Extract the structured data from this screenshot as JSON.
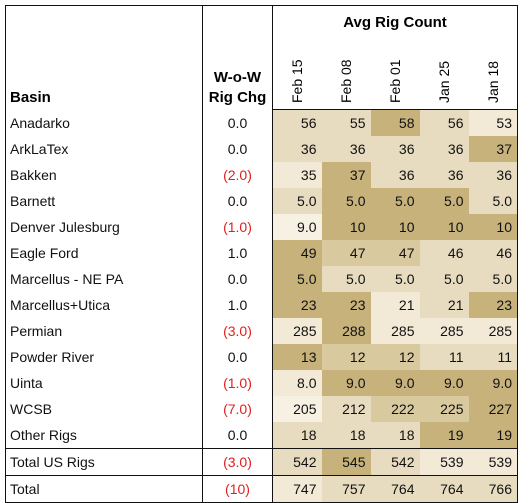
{
  "header": {
    "basin": "Basin",
    "wow_line1": "W-o-W",
    "wow_line2": "Rig Chg",
    "avg_rig_count": "Avg Rig Count",
    "dates": [
      "Feb 15",
      "Feb 08",
      "Feb 01",
      "Jan 25",
      "Jan 18"
    ]
  },
  "rows": [
    {
      "basin": "Anadarko",
      "wow": "0.0",
      "values": [
        "56",
        "55",
        "58",
        "56",
        "53"
      ]
    },
    {
      "basin": "ArkLaTex",
      "wow": "0.0",
      "values": [
        "36",
        "36",
        "36",
        "36",
        "37"
      ]
    },
    {
      "basin": "Bakken",
      "wow": "(2.0)",
      "values": [
        "35",
        "37",
        "36",
        "36",
        "36"
      ]
    },
    {
      "basin": "Barnett",
      "wow": "0.0",
      "values": [
        "5.0",
        "5.0",
        "5.0",
        "5.0",
        "5.0"
      ]
    },
    {
      "basin": "Denver Julesburg",
      "wow": "(1.0)",
      "values": [
        "9.0",
        "10",
        "10",
        "10",
        "10"
      ]
    },
    {
      "basin": "Eagle Ford",
      "wow": "1.0",
      "values": [
        "49",
        "47",
        "47",
        "46",
        "46"
      ]
    },
    {
      "basin": "Marcellus - NE PA",
      "wow": "0.0",
      "values": [
        "5.0",
        "5.0",
        "5.0",
        "5.0",
        "5.0"
      ]
    },
    {
      "basin": "Marcellus+Utica",
      "wow": "1.0",
      "values": [
        "23",
        "23",
        "21",
        "21",
        "23"
      ]
    },
    {
      "basin": "Permian",
      "wow": "(3.0)",
      "values": [
        "285",
        "288",
        "285",
        "285",
        "285"
      ]
    },
    {
      "basin": "Powder River",
      "wow": "0.0",
      "values": [
        "13",
        "12",
        "12",
        "11",
        "11"
      ]
    },
    {
      "basin": "Uinta",
      "wow": "(1.0)",
      "values": [
        "8.0",
        "9.0",
        "9.0",
        "9.0",
        "9.0"
      ]
    },
    {
      "basin": "WCSB",
      "wow": "(7.0)",
      "values": [
        "205",
        "212",
        "222",
        "225",
        "227"
      ]
    },
    {
      "basin": "Other Rigs",
      "wow": "0.0",
      "values": [
        "18",
        "18",
        "18",
        "19",
        "19"
      ]
    }
  ],
  "total_us": {
    "basin": "Total US Rigs",
    "wow": "(3.0)",
    "values": [
      "542",
      "545",
      "542",
      "539",
      "539"
    ]
  },
  "total": {
    "basin": "Total",
    "wow": "(10)",
    "values": [
      "747",
      "757",
      "764",
      "764",
      "766"
    ]
  },
  "colors": {
    "negative": "#e02020",
    "shade_dark": "#c7b27c",
    "shade_mid": "#d9c99f",
    "shade_light": "#e7dcc0",
    "shade_lighter": "#f2ead7",
    "shade_lightest": "#f7f1e4"
  }
}
